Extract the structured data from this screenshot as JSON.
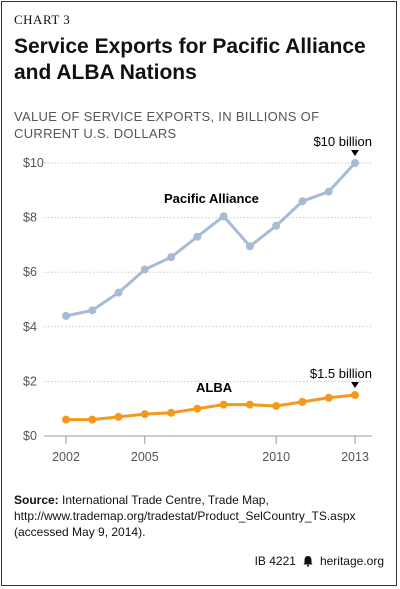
{
  "header": {
    "chart_label": "CHART 3",
    "title": "Service Exports for Pacific Alliance and ALBA Nations",
    "subtitle": "VALUE OF SERVICE EXPORTS, IN BILLIONS OF CURRENT U.S. DOLLARS"
  },
  "chart_data": {
    "type": "line",
    "title": "Service Exports for Pacific Alliance and ALBA Nations",
    "ylabel": "VALUE OF SERVICE EXPORTS, IN BILLIONS OF CURRENT U.S. DOLLARS",
    "x": [
      2002,
      2003,
      2004,
      2005,
      2006,
      2007,
      2008,
      2009,
      2010,
      2011,
      2012,
      2013
    ],
    "xticks": [
      "2002",
      "2005",
      "2010",
      "2013"
    ],
    "yticks": [
      "$0",
      "$2",
      "$4",
      "$6",
      "$8",
      "$10"
    ],
    "ylim": [
      0,
      10
    ],
    "xlim": [
      2002,
      2013
    ],
    "grid": true,
    "series": [
      {
        "name": "Pacific Alliance",
        "color": "#a8bbd6",
        "values": [
          4.4,
          4.6,
          5.25,
          6.1,
          6.55,
          7.3,
          8.05,
          6.95,
          7.7,
          8.6,
          8.95,
          10.0
        ]
      },
      {
        "name": "ALBA",
        "color": "#f39a1e",
        "values": [
          0.6,
          0.6,
          0.7,
          0.8,
          0.85,
          1.0,
          1.15,
          1.15,
          1.1,
          1.25,
          1.4,
          1.5
        ]
      }
    ],
    "annotations": [
      {
        "text": "$10 billion",
        "series": "Pacific Alliance",
        "x": 2013
      },
      {
        "text": "$1.5 billion",
        "series": "ALBA",
        "x": 2013
      }
    ]
  },
  "source": {
    "label": "Source:",
    "text": "International Trade Centre, Trade Map, http://www.trademap.org/tradestat/Product_SelCountry_TS.aspx (accessed May 9, 2014)."
  },
  "footer": {
    "id": "IB 4221",
    "site": "heritage.org"
  }
}
